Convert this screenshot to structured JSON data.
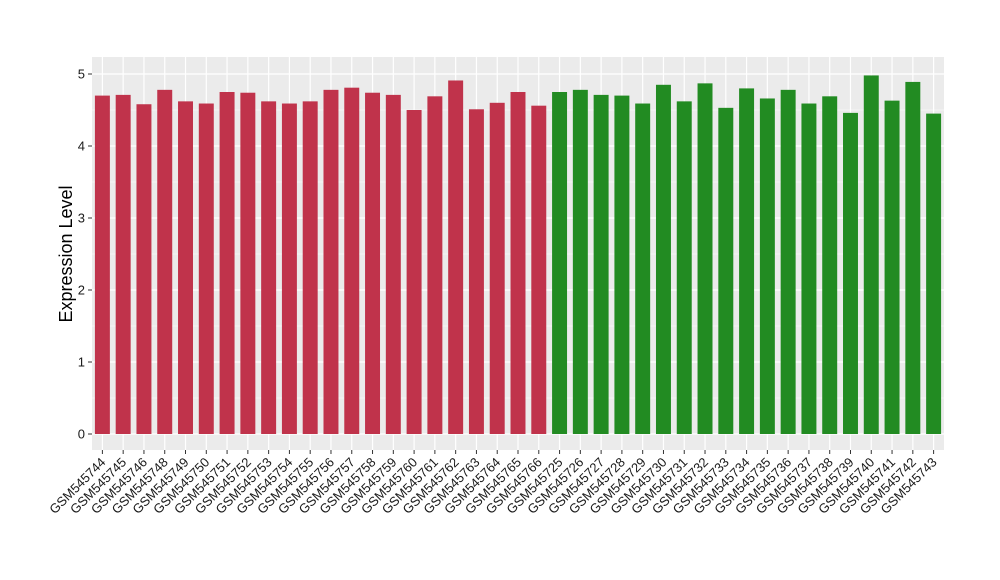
{
  "chart_data": {
    "type": "bar",
    "title": "",
    "xlabel": "",
    "ylabel": "Expression Level",
    "ylim": [
      0,
      5.2
    ],
    "yticks": [
      0,
      1,
      2,
      3,
      4,
      5
    ],
    "grid": true,
    "legend": "none",
    "panel_background": "#ebebeb",
    "grid_color": "#ffffff",
    "categories": [
      "GSM545744",
      "GSM545745",
      "GSM545746",
      "GSM545748",
      "GSM545749",
      "GSM545750",
      "GSM545751",
      "GSM545752",
      "GSM545753",
      "GSM545754",
      "GSM545755",
      "GSM545756",
      "GSM545757",
      "GSM545758",
      "GSM545759",
      "GSM545760",
      "GSM545761",
      "GSM545762",
      "GSM545763",
      "GSM545764",
      "GSM545765",
      "GSM545766",
      "GSM545725",
      "GSM545726",
      "GSM545727",
      "GSM545728",
      "GSM545729",
      "GSM545730",
      "GSM545731",
      "GSM545732",
      "GSM545733",
      "GSM545734",
      "GSM545735",
      "GSM545736",
      "GSM545737",
      "GSM545738",
      "GSM545739",
      "GSM545740",
      "GSM545741",
      "GSM545742",
      "GSM545743"
    ],
    "values": [
      4.7,
      4.71,
      4.58,
      4.78,
      4.62,
      4.59,
      4.75,
      4.74,
      4.62,
      4.59,
      4.62,
      4.78,
      4.81,
      4.74,
      4.71,
      4.5,
      4.69,
      4.91,
      4.51,
      4.6,
      4.75,
      4.56,
      4.75,
      4.78,
      4.71,
      4.7,
      4.59,
      4.85,
      4.62,
      4.87,
      4.53,
      4.8,
      4.66,
      4.78,
      4.59,
      4.69,
      4.46,
      4.98,
      4.63,
      4.89,
      4.45
    ],
    "groups": [
      0,
      0,
      0,
      0,
      0,
      0,
      0,
      0,
      0,
      0,
      0,
      0,
      0,
      0,
      0,
      0,
      0,
      0,
      0,
      0,
      0,
      0,
      1,
      1,
      1,
      1,
      1,
      1,
      1,
      1,
      1,
      1,
      1,
      1,
      1,
      1,
      1,
      1,
      1,
      1,
      1
    ],
    "group_colors": [
      "#c0334b",
      "#228b22"
    ]
  }
}
